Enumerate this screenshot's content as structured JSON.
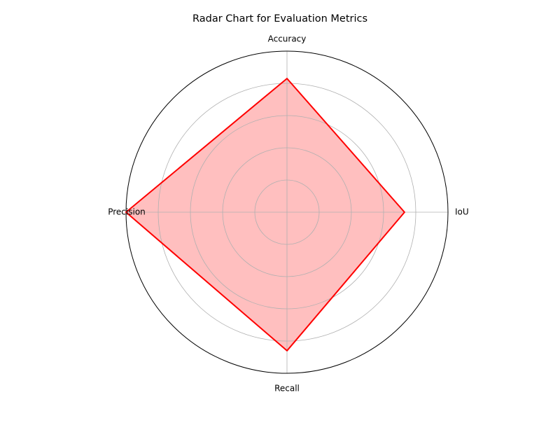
{
  "chart_data": {
    "type": "radar",
    "title": "Radar Chart for Evaluation Metrics",
    "axes": [
      "IoU",
      "Accuracy",
      "Precision",
      "Recall"
    ],
    "series": [
      {
        "values": [
          0.73,
          0.83,
          1.0,
          0.86
        ]
      }
    ],
    "rlim": [
      0,
      1
    ],
    "radial_gridlines": [
      0.2,
      0.4,
      0.6,
      0.8
    ],
    "grid": true,
    "legend": "none",
    "colors": {
      "line": "#ff0000",
      "fill": "#ffbfbf",
      "grid": "#b0b0b0",
      "frame": "#000000"
    }
  }
}
